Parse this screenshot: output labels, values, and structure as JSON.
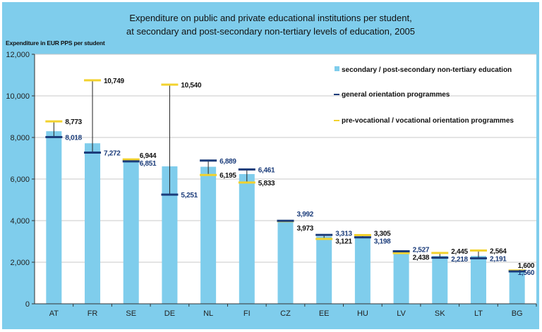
{
  "chart_data": {
    "type": "bar",
    "title": "Expenditure on public and private educational institutions per student,",
    "subtitle": "at secondary and post-secondary non-tertiary levels of education, 2005",
    "ylabel": "Expenditure in EUR PPS per student",
    "xlabel": "",
    "ylim": [
      0,
      12000
    ],
    "yticks": [
      0,
      2000,
      4000,
      6000,
      8000,
      10000,
      12000
    ],
    "ytick_labels": [
      "0",
      "2,000",
      "4,000",
      "6,000",
      "8,000",
      "10,000",
      "12,000"
    ],
    "grid": true,
    "legend_position": "top-right",
    "categories": [
      "AT",
      "FR",
      "SE",
      "DE",
      "NL",
      "FI",
      "CZ",
      "EE",
      "HU",
      "LV",
      "SK",
      "LT",
      "BG"
    ],
    "series": [
      {
        "name": "secondary / post-secondary non-tertiary education",
        "kind": "bar",
        "color": "#7fcdec",
        "values": [
          8300,
          7720,
          6900,
          6610,
          6590,
          6240,
          3990,
          3240,
          3240,
          2500,
          2300,
          2300,
          1580
        ]
      },
      {
        "name": "general orientation programmes",
        "kind": "marker",
        "color": "#1b3c7a",
        "values": [
          8018,
          7272,
          6851,
          5251,
          6889,
          6461,
          3992,
          3313,
          3198,
          2527,
          2218,
          2191,
          1560
        ],
        "labels": [
          "8,018",
          "7,272",
          "6,851",
          "5,251",
          "6,889",
          "6,461",
          "3,992",
          "3,313",
          "3,198",
          "2,527",
          "2,218",
          "2,191",
          "1,560"
        ]
      },
      {
        "name": "pre-vocational / vocational orientation programmes",
        "kind": "marker",
        "color": "#f2d22e",
        "values": [
          8773,
          10749,
          6944,
          10540,
          6195,
          5833,
          3973,
          3121,
          3305,
          2438,
          2445,
          2564,
          1600
        ],
        "labels": [
          "8,773",
          "10,749",
          "6,944",
          "10,540",
          "6,195",
          "5,833",
          "3,973",
          "3,121",
          "3,305",
          "2,438",
          "2,445",
          "2,564",
          "1,600"
        ]
      }
    ]
  },
  "colors": {
    "frame": "#7fcdec",
    "bar": "#7fcdec",
    "general": "#1b3c7a",
    "vocational": "#f2d22e",
    "grid": "#c8c8c8"
  }
}
